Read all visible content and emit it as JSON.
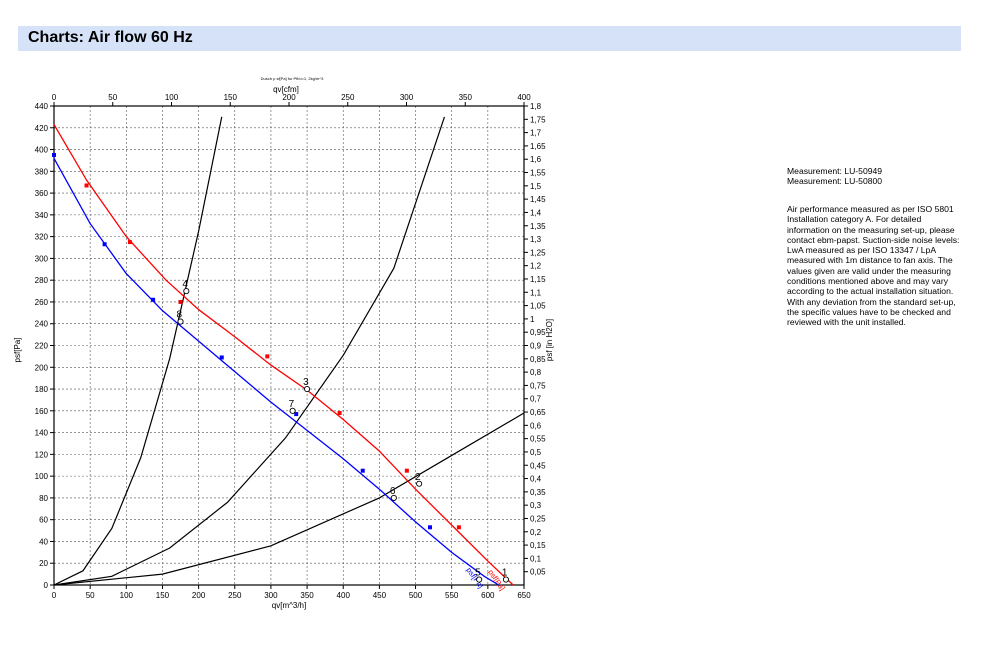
{
  "header": {
    "title": "Charts: Air flow 60 Hz"
  },
  "info": {
    "measurements": [
      "Measurement: LU-50949",
      "Measurement: LU-50800"
    ],
    "description": "Air performance measured as per ISO 5801 Installation category A. For detailed information on the measuring set-up, please contact ebm-papst. Suction-side noise levels: LwA measured as per ISO 13347 / LpA measured with 1m distance to fan axis. The values given are valid under the measuring conditions mentioned above and may vary according to the actual installation situation. With any deviation from the standard set-up, the specific values have to be checked and reviewed with the unit installed."
  },
  "chart_data": {
    "type": "line",
    "title": "",
    "top_small_label": "Dusch p sf[Pa] fur Pfl/o=1, 2kg/m^3",
    "xlabel": "qv[m^3/h]",
    "ylabel": "psf[Pa]",
    "xlim": [
      0,
      650
    ],
    "ylim": [
      0,
      440
    ],
    "x_ticks": [
      0,
      50,
      100,
      150,
      200,
      250,
      300,
      350,
      400,
      450,
      500,
      550,
      600,
      650
    ],
    "y_ticks": [
      0,
      20,
      40,
      60,
      80,
      100,
      120,
      140,
      160,
      180,
      200,
      220,
      240,
      260,
      280,
      300,
      320,
      340,
      360,
      380,
      400,
      420,
      440
    ],
    "x2label": "qv[cfm]",
    "x2lim": [
      0,
      400
    ],
    "x2_ticks": [
      0,
      50,
      100,
      150,
      200,
      250,
      300,
      350,
      400
    ],
    "y2label": "psf [in H2O]",
    "y2lim": [
      0,
      1.8
    ],
    "y2_ticks": [
      "0,05",
      "0,1",
      "0,15",
      "0,2",
      "0,25",
      "0,3",
      "0,35",
      "0,4",
      "0,45",
      "0,5",
      "0,55",
      "0,6",
      "0,65",
      "0,7",
      "0,75",
      "0,8",
      "0,85",
      "0,9",
      "0,95",
      "1",
      "1,05",
      "1,1",
      "1,15",
      "1,2",
      "1,25",
      "1,3",
      "1,35",
      "1,4",
      "1,45",
      "1,5",
      "1,55",
      "1,6",
      "1,65",
      "1,7",
      "1,75",
      "1,8"
    ],
    "grid": true,
    "series": [
      {
        "label": "psf[Pa]",
        "color": "#ff0000",
        "x": [
          0,
          45,
          100,
          155,
          200,
          250,
          300,
          350,
          400,
          450,
          500,
          550,
          600,
          635
        ],
        "y": [
          423,
          372,
          320,
          280,
          253,
          228,
          202,
          179,
          152,
          123,
          88,
          55,
          22,
          0
        ],
        "markers": {
          "x": [
            45,
            105,
            175,
            295,
            395,
            488,
            560
          ],
          "y": [
            367,
            315,
            260,
            210,
            158,
            105,
            53
          ]
        }
      },
      {
        "label": "psf[Pa]",
        "color": "#0000ff",
        "x": [
          0,
          50,
          100,
          150,
          200,
          250,
          300,
          350,
          400,
          450,
          500,
          550,
          595,
          615
        ],
        "y": [
          392,
          332,
          286,
          252,
          224,
          196,
          168,
          142,
          116,
          88,
          58,
          30,
          8,
          0
        ],
        "markers": {
          "x": [
            0,
            70,
            137,
            232,
            335,
            427,
            520
          ],
          "y": [
            395,
            313,
            262,
            209,
            157,
            105,
            53
          ]
        }
      }
    ],
    "system_curves": [
      {
        "color": "#000000",
        "x": [
          0,
          40,
          80,
          120,
          160,
          200,
          232
        ],
        "y": [
          0,
          13,
          52,
          117,
          208,
          325,
          430
        ]
      },
      {
        "color": "#000000",
        "x": [
          0,
          80,
          160,
          240,
          320,
          400,
          470,
          540
        ],
        "y": [
          0,
          8,
          34,
          76,
          135,
          211,
          291,
          430
        ]
      },
      {
        "color": "#000000",
        "x": [
          0,
          150,
          300,
          450,
          550,
          650
        ],
        "y": [
          0,
          10,
          36,
          80,
          119,
          158
        ]
      }
    ],
    "operating_points": [
      {
        "label": "4",
        "x": 183,
        "y": 270
      },
      {
        "label": "8",
        "x": 175,
        "y": 242
      },
      {
        "label": "3",
        "x": 350,
        "y": 180
      },
      {
        "label": "7",
        "x": 330,
        "y": 160
      },
      {
        "label": "2",
        "x": 505,
        "y": 93
      },
      {
        "label": "6",
        "x": 470,
        "y": 80
      },
      {
        "label": "1",
        "x": 625,
        "y": 5
      },
      {
        "label": "5",
        "x": 588,
        "y": 5
      }
    ]
  }
}
